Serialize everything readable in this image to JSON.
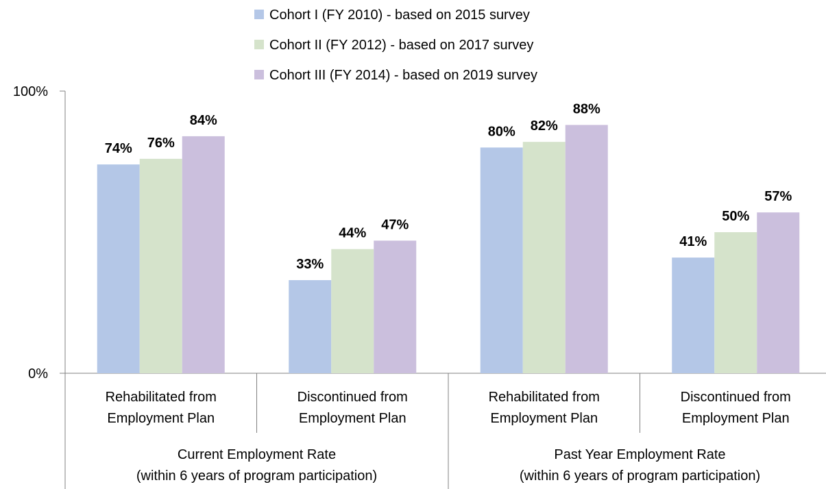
{
  "chart_data": {
    "type": "bar",
    "title": "",
    "xlabel": "",
    "ylabel": "",
    "ylim": [
      0,
      100
    ],
    "yticks": [
      "0%",
      "100%"
    ],
    "grid": false,
    "legend_position": "top",
    "groups": [
      "Current Employment Rate\n(within 6 years of program participation)",
      "Past Year Employment Rate\n(within 6 years of program participation)"
    ],
    "categories": [
      "Rehabilitated from\nEmployment Plan",
      "Discontinued from\nEmployment Plan",
      "Rehabilitated from\nEmployment Plan",
      "Discontinued from\nEmployment Plan"
    ],
    "series": [
      {
        "name": "Cohort I (FY 2010) - based on 2015 survey",
        "color": "#B4C7E7",
        "values": [
          74,
          33,
          80,
          41
        ],
        "labels": [
          "74%",
          "33%",
          "80%",
          "41%"
        ]
      },
      {
        "name": "Cohort II (FY 2012) - based on 2017 survey",
        "color": "#D5E3CB",
        "values": [
          76,
          44,
          82,
          50
        ],
        "labels": [
          "76%",
          "44%",
          "82%",
          "50%"
        ]
      },
      {
        "name": "Cohort III (FY 2014) - based on 2019 survey",
        "color": "#CBBFDD",
        "values": [
          84,
          47,
          88,
          57
        ],
        "labels": [
          "84%",
          "47%",
          "88%",
          "57%"
        ]
      }
    ]
  }
}
